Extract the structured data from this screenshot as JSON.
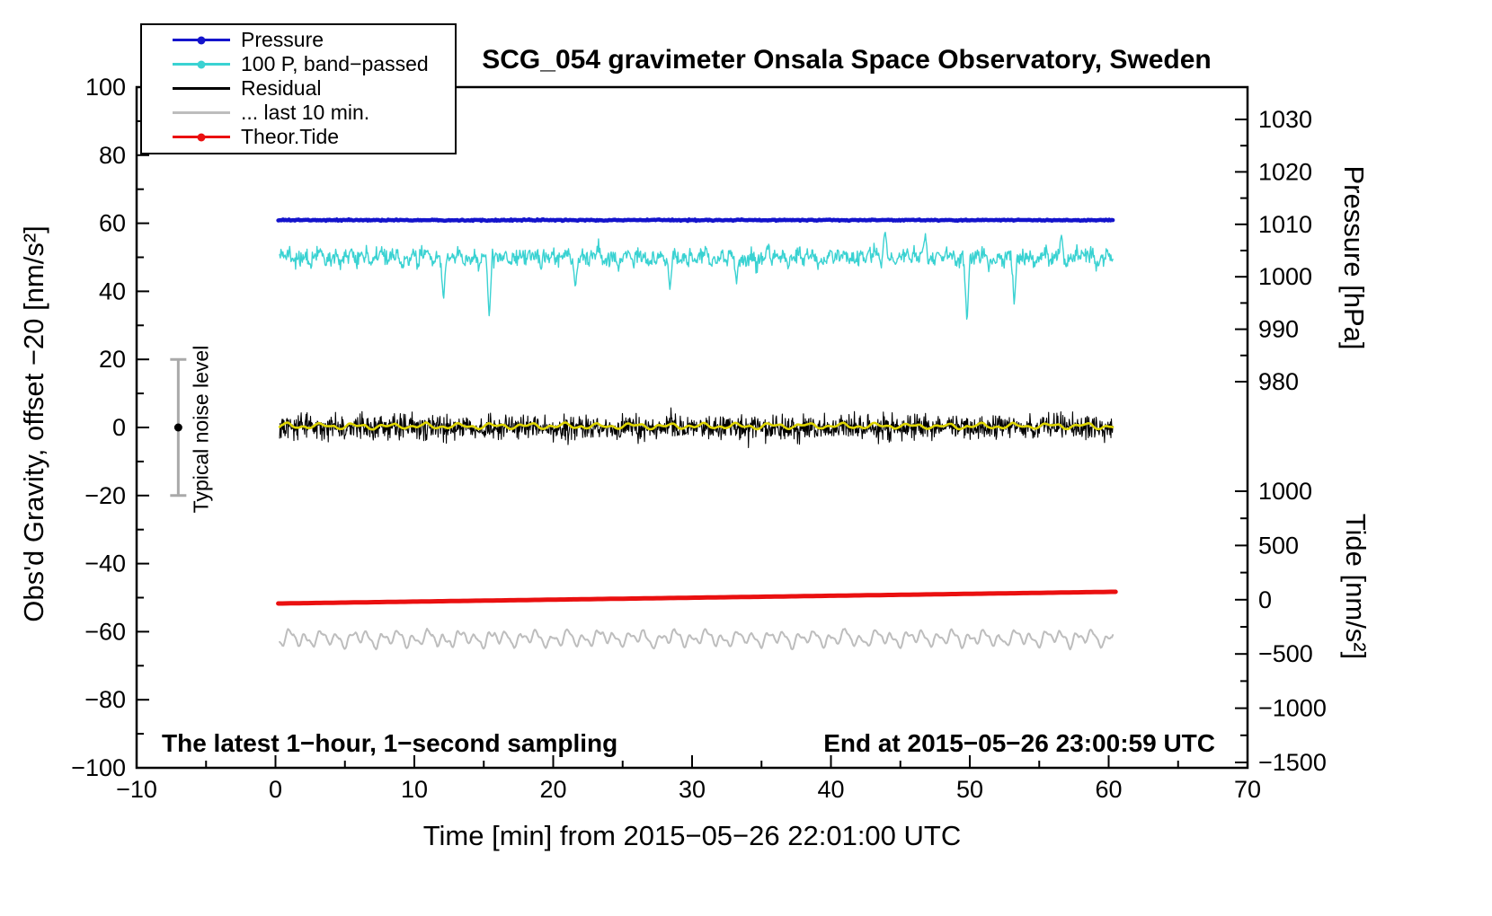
{
  "app": {
    "type": "scientific-plot",
    "background": "#ffffff"
  },
  "chart_data": {
    "type": "line",
    "title": "SCG_054 gravimeter Onsala Space Observatory, Sweden",
    "xlabel": "Time [min] from 2015−05−26 22:01:00 UTC",
    "x_axis": {
      "min": -10,
      "max": 70,
      "major_ticks": [
        -10,
        0,
        10,
        20,
        30,
        40,
        50,
        60,
        70
      ],
      "tick_labels": [
        "−10",
        "0",
        "10",
        "20",
        "30",
        "40",
        "50",
        "60",
        "70"
      ],
      "minor_step": 5
    },
    "left_axis": {
      "label": "Obs'd Gravity, offset −20 [nm/s²]",
      "min": -100,
      "max": 100,
      "major_ticks": [
        100,
        80,
        60,
        40,
        20,
        0,
        -20,
        -40,
        -60,
        -80,
        -100
      ],
      "tick_labels": [
        "100",
        "80",
        "60",
        "40",
        "20",
        "0",
        "−20",
        "−40",
        "−60",
        "−80",
        "−100"
      ],
      "minor_step": 10
    },
    "pressure_axis": {
      "label": "Pressure [hPa]",
      "major_ticks": [
        1030,
        1020,
        1010,
        1000,
        990,
        980
      ],
      "tick_labels": [
        "1030",
        "1020",
        "1010",
        "1000",
        "990",
        "980"
      ],
      "minor_step": 5
    },
    "tide_axis": {
      "label": "Tide [nm/s²]",
      "major_ticks": [
        1000,
        500,
        0,
        -500,
        -1000,
        -1500
      ],
      "tick_labels": [
        "1000",
        "500",
        "0",
        "−500",
        "−1000",
        "−1500"
      ],
      "minor_step": 250
    },
    "series": [
      {
        "name": "Pressure",
        "axis": "pressure",
        "color": "#1414cc",
        "line_width": 4.5,
        "x_range": [
          0.2,
          60.3
        ],
        "baseline": 1010.8,
        "noise_amp": 0.1,
        "points": 700
      },
      {
        "name": "100 P, band-passed",
        "axis": "left",
        "color": "#3ad2d2",
        "line_width": 1.4,
        "x_range": [
          0.3,
          60.3
        ],
        "baseline": 50,
        "noise_amp": 2.0,
        "waves": [
          0.8,
          0.9,
          0.7
        ],
        "points": 1250,
        "spikes": [
          {
            "x": 12.1,
            "v": 37
          },
          {
            "x": 15.4,
            "v": 31.5
          },
          {
            "x": 21.6,
            "v": 41
          },
          {
            "x": 28.4,
            "v": 40.5
          },
          {
            "x": 33.2,
            "v": 42
          },
          {
            "x": 43.9,
            "v": 58
          },
          {
            "x": 46.8,
            "v": 57
          },
          {
            "x": 49.8,
            "v": 30
          },
          {
            "x": 53.2,
            "v": 35.5
          },
          {
            "x": 56.6,
            "v": 56.5
          }
        ]
      },
      {
        "name": "Residual",
        "axis": "left",
        "color": "#000000",
        "line_width": 1.1,
        "x_range": [
          0.3,
          60.3
        ],
        "baseline": 0,
        "noise_amp": 3.1,
        "points": 1700
      },
      {
        "name": "Residual smoothed",
        "axis": "left",
        "color": "#ddd400",
        "line_width": 2.6,
        "x_range": [
          0.3,
          60.3
        ],
        "baseline": 0.4,
        "noise_amp": 0.35,
        "waves": [
          0.7,
          0.5,
          0.6
        ],
        "smooth": 3,
        "smooth_gain": 1,
        "points": 700
      },
      {
        "name": "... last 10 min.",
        "axis": "left",
        "color": "#bdbdbd",
        "line_width": 2,
        "x_range": [
          0.3,
          60.3
        ],
        "baseline": -62,
        "noise_amp": 1.0,
        "waves": [
          1.7,
          1.4,
          0.9
        ],
        "smooth": 2,
        "smooth_gain": 1,
        "points": 900
      },
      {
        "name": "Theor.Tide",
        "axis": "tide",
        "color": "#ea1010",
        "line_width": 5,
        "x_range": [
          0.2,
          60.5
        ],
        "type": "trend",
        "start": -35,
        "end": 73,
        "points": 200
      }
    ],
    "noise_bar": {
      "x": -7,
      "center": 0,
      "half_width": 20,
      "label": "Typical noise level"
    }
  },
  "legend": {
    "items": [
      {
        "label": "Pressure",
        "color": "#1414cc",
        "marker": true
      },
      {
        "label": "100 P, band−passed",
        "color": "#3ad2d2",
        "marker": true
      },
      {
        "label": "Residual",
        "color": "#000000",
        "marker": false
      },
      {
        "label": "... last 10 min.",
        "color": "#bdbdbd",
        "marker": false
      },
      {
        "label": "Theor.Tide",
        "color": "#ea1010",
        "marker": true
      }
    ]
  },
  "annotations": {
    "sampling": "The latest 1−hour, 1−second sampling",
    "end_time": "End at 2015−05−26 23:00:59 UTC",
    "noise_level": "Typical noise level"
  }
}
